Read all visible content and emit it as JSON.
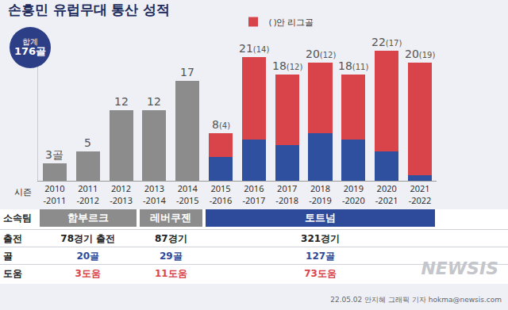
{
  "title": "손흥민 유럽무대 통산 성적",
  "total_badge": {
    "label": "합계",
    "value": "176골"
  },
  "chart_data": {
    "type": "bar",
    "stacked": true,
    "data_labels": true,
    "x_label": "시즌",
    "categories": [
      "2010-2011",
      "2011-2012",
      "2012-2013",
      "2013-2014",
      "2014-2015",
      "2015-2016",
      "2016-2017",
      "2017-2018",
      "2018-2019",
      "2019-2020",
      "2020-2021",
      "2021-2022"
    ],
    "series": [
      {
        "color": "#8c8c8c",
        "values": [
          3,
          5,
          12,
          12,
          17,
          null,
          null,
          null,
          null,
          null,
          null,
          null
        ]
      },
      {
        "color": "#2f4f9f",
        "values": [
          null,
          null,
          null,
          null,
          null,
          4,
          7,
          6,
          8,
          7,
          5,
          1
        ]
      },
      {
        "name": "( )안 리그골",
        "color": "#d9434a",
        "values": [
          null,
          null,
          null,
          null,
          null,
          4,
          14,
          12,
          12,
          11,
          17,
          19
        ]
      }
    ],
    "totals": {
      "values": [
        3,
        5,
        12,
        12,
        17,
        8,
        21,
        18,
        20,
        18,
        22,
        20
      ],
      "value_labels": [
        "3골",
        "5",
        "12",
        "12",
        "17",
        "8(4)",
        "21(14)",
        "18(12)",
        "20(12)",
        "18(11)",
        "22(17)",
        "20(19)"
      ]
    },
    "ylim": [
      0,
      25
    ],
    "tick_labels": "x",
    "legend": "top",
    "grid": false
  },
  "table": {
    "header": "소속팀",
    "teams": [
      {
        "name": "함부르크",
        "color": "#8c8c8c",
        "seasons": [
          "2010-2011",
          "2011-2012",
          "2012-2013"
        ]
      },
      {
        "name": "레버쿠젠",
        "color": "#8c8c8c",
        "seasons": [
          "2013-2014",
          "2014-2015"
        ]
      },
      {
        "name": "토트넘",
        "color": "#2e4a9a",
        "seasons": [
          "2015-2016",
          "2016-2017",
          "2017-2018",
          "2018-2019",
          "2019-2020",
          "2020-2021",
          "2021-2022"
        ]
      }
    ],
    "rows": [
      {
        "label": "출전",
        "color": "#222222",
        "values": [
          "78경기 출전",
          "87경기",
          "321경기"
        ]
      },
      {
        "label": "골",
        "color": "#2e4a9a",
        "values": [
          "20골",
          "29골",
          "127골"
        ]
      },
      {
        "label": "도움",
        "color": "#d9434a",
        "values": [
          "3도움",
          "11도움",
          "73도움"
        ]
      }
    ]
  },
  "footer": "22.05.02 안지혜 그래픽 기자 hokma@newsis.com",
  "watermark": "NEWSIS"
}
